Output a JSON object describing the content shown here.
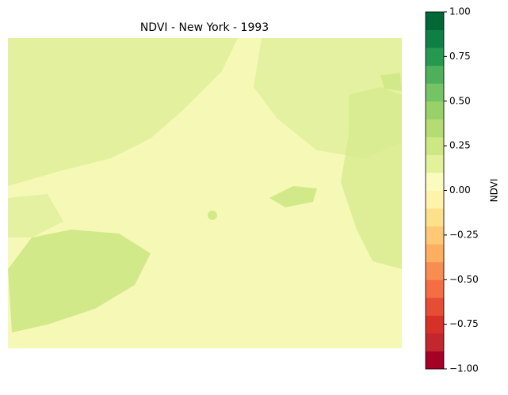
{
  "chart_data": {
    "type": "raster",
    "title": "NDVI - New York - 1993",
    "colorbar": {
      "label": "NDVI",
      "lim": [
        -1,
        1
      ],
      "ticks": [
        {
          "value": -1,
          "label": "−1.00"
        },
        {
          "value": -0.75,
          "label": "−0.75"
        },
        {
          "value": -0.5,
          "label": "−0.50"
        },
        {
          "value": -0.25,
          "label": "−0.25"
        },
        {
          "value": 0,
          "label": "0.00"
        },
        {
          "value": 0.25,
          "label": "0.25"
        },
        {
          "value": 0.5,
          "label": "0.50"
        },
        {
          "value": 0.75,
          "label": "0.75"
        },
        {
          "value": 1,
          "label": "1.00"
        }
      ],
      "colors": [
        "#a50026",
        "#c1272d",
        "#d73027",
        "#e54e35",
        "#f46d43",
        "#f88d52",
        "#fdae61",
        "#fec877",
        "#fee08b",
        "#fff2aa",
        "#fbfbc0",
        "#e3f29a",
        "#cde784",
        "#b5dc72",
        "#97d168",
        "#74c364",
        "#4fb05c",
        "#26984f",
        "#0e8045",
        "#006837"
      ]
    }
  }
}
